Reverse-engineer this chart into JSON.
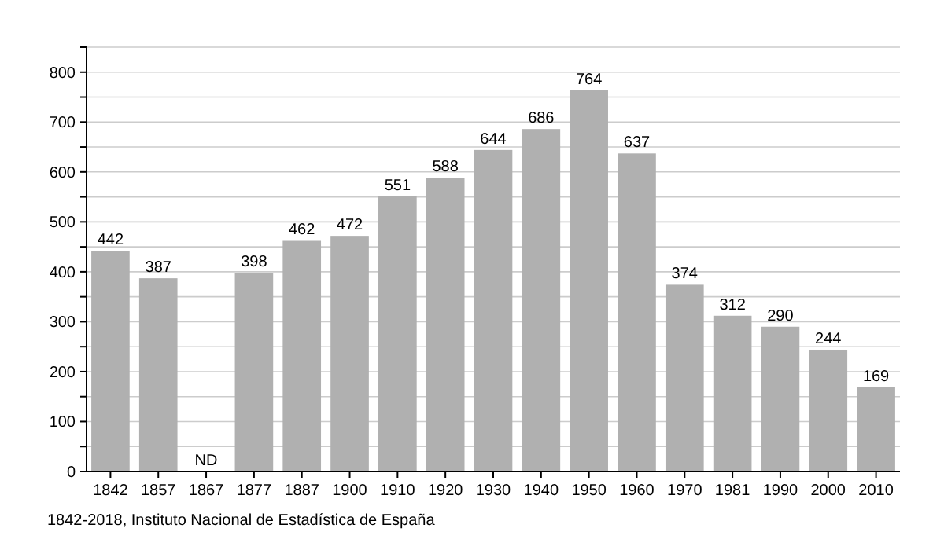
{
  "chart_data": {
    "type": "bar",
    "categories": [
      "1842",
      "1857",
      "1867",
      "1877",
      "1887",
      "1900",
      "1910",
      "1920",
      "1930",
      "1940",
      "1950",
      "1960",
      "1970",
      "1981",
      "1990",
      "2000",
      "2010"
    ],
    "values": [
      442,
      387,
      null,
      398,
      462,
      472,
      551,
      588,
      644,
      686,
      764,
      637,
      374,
      312,
      290,
      244,
      169
    ],
    "value_labels": [
      "442",
      "387",
      "ND",
      "398",
      "462",
      "472",
      "551",
      "588",
      "644",
      "686",
      "764",
      "637",
      "374",
      "312",
      "290",
      "244",
      "169"
    ],
    "color": "#b0b0b0",
    "ylim": [
      0,
      850
    ],
    "yticks": [
      0,
      {
        "value": 50,
        "label": null
      },
      100,
      {
        "value": 150,
        "label": null
      },
      200,
      {
        "value": 250,
        "label": null
      },
      300,
      {
        "value": 350,
        "label": null
      },
      400,
      {
        "value": 450,
        "label": null
      },
      500,
      {
        "value": 550,
        "label": null
      },
      600,
      {
        "value": 650,
        "label": null
      },
      700,
      {
        "value": 750,
        "label": null
      },
      800,
      {
        "value": 850,
        "label": null
      }
    ],
    "grid": "y",
    "annotations": [
      "1842-2018, Instituto Nacional de Estadística de España"
    ]
  }
}
